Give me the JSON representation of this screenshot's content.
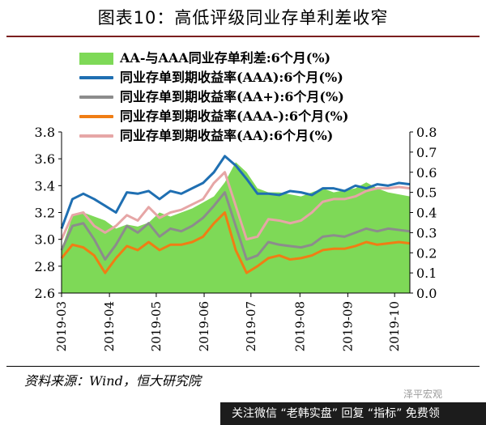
{
  "figure": {
    "title": "图表10：高低评级同业存单利差收窄",
    "source": "资料来源：Wind，恒大研究院",
    "watermark": "关注微信 “老韩实盘” 回复 “指标” 免费领",
    "corner_tag": "泽平宏观"
  },
  "colors": {
    "spread_fill": "#7ed957",
    "aaa": "#1f6fb2",
    "aa_plus": "#8c8c8c",
    "aaa_minus": "#f07d14",
    "aa": "#e6a6a6",
    "title_rule": "#7a1f1f"
  },
  "legend": [
    {
      "label": "AA-与AAA同业存单利差:6个月(%)",
      "swatch": "area",
      "color_key": "spread_fill"
    },
    {
      "label": "同业存单到期收益率(AAA):6个月(%)",
      "swatch": "line",
      "color_key": "aaa"
    },
    {
      "label": "同业存单到期收益率(AA+):6个月(%)",
      "swatch": "line",
      "color_key": "aa_plus"
    },
    {
      "label": "同业存单到期收益率(AAA-):6个月(%)",
      "swatch": "line",
      "color_key": "aaa_minus"
    },
    {
      "label": "同业存单到期收益率(AA):6个月(%)",
      "swatch": "line",
      "color_key": "aa"
    }
  ],
  "chart_data": {
    "type": "line",
    "x": [
      "2019-03-01",
      "2019-03-08",
      "2019-03-15",
      "2019-03-22",
      "2019-03-29",
      "2019-04-05",
      "2019-04-12",
      "2019-04-19",
      "2019-04-26",
      "2019-05-03",
      "2019-05-10",
      "2019-05-17",
      "2019-05-24",
      "2019-05-31",
      "2019-06-07",
      "2019-06-14",
      "2019-06-21",
      "2019-06-28",
      "2019-07-05",
      "2019-07-12",
      "2019-07-19",
      "2019-07-26",
      "2019-08-02",
      "2019-08-09",
      "2019-08-16",
      "2019-08-23",
      "2019-08-30",
      "2019-09-06",
      "2019-09-13",
      "2019-09-20",
      "2019-09-27",
      "2019-10-04",
      "2019-10-11"
    ],
    "x_ticks": [
      "2019-03",
      "2019-04",
      "2019-05",
      "2019-06",
      "2019-07",
      "2019-08",
      "2019-09",
      "2019-10"
    ],
    "y_left": {
      "min": 2.6,
      "max": 3.8,
      "ticks": [
        "2.6",
        "2.8",
        "3.0",
        "3.2",
        "3.4",
        "3.6",
        "3.8"
      ]
    },
    "y_right": {
      "min": 0.0,
      "max": 0.8,
      "ticks": [
        "0.0",
        "0.1",
        "0.2",
        "0.3",
        "0.4",
        "0.5",
        "0.6",
        "0.7",
        "0.8"
      ]
    },
    "area_series": {
      "name": "AA-与AAA同业存单利差:6个月(%)",
      "axis": "right",
      "values": [
        0.22,
        0.38,
        0.4,
        0.38,
        0.36,
        0.32,
        0.34,
        0.33,
        0.35,
        0.4,
        0.38,
        0.4,
        0.42,
        0.45,
        0.48,
        0.55,
        0.65,
        0.6,
        0.52,
        0.5,
        0.5,
        0.49,
        0.48,
        0.5,
        0.52,
        0.5,
        0.51,
        0.52,
        0.55,
        0.52,
        0.5,
        0.49,
        0.48
      ]
    },
    "series": [
      {
        "name": "同业存单到期收益率(AAA):6个月(%)",
        "axis": "left",
        "color_key": "aaa",
        "values": [
          3.08,
          3.3,
          3.34,
          3.3,
          3.25,
          3.2,
          3.35,
          3.34,
          3.36,
          3.3,
          3.36,
          3.34,
          3.38,
          3.42,
          3.5,
          3.62,
          3.55,
          3.45,
          3.34,
          3.34,
          3.33,
          3.36,
          3.35,
          3.33,
          3.38,
          3.38,
          3.36,
          3.4,
          3.38,
          3.41,
          3.4,
          3.42,
          3.41
        ]
      },
      {
        "name": "同业存单到期收益率(AA+):6个月(%)",
        "axis": "left",
        "color_key": "aa_plus",
        "values": [
          2.92,
          3.1,
          3.12,
          3.0,
          2.85,
          2.96,
          3.1,
          3.05,
          3.12,
          3.02,
          3.08,
          3.06,
          3.1,
          3.16,
          3.25,
          3.35,
          3.1,
          2.85,
          2.88,
          2.98,
          2.96,
          2.95,
          2.94,
          2.96,
          3.02,
          3.03,
          3.02,
          3.05,
          3.08,
          3.06,
          3.08,
          3.07,
          3.06
        ]
      },
      {
        "name": "同业存单到期收益率(AAA-):6个月(%)",
        "axis": "left",
        "color_key": "aaa_minus",
        "values": [
          2.86,
          2.96,
          2.94,
          2.88,
          2.75,
          2.86,
          2.95,
          2.92,
          2.98,
          2.92,
          2.96,
          2.96,
          2.98,
          3.02,
          3.12,
          3.2,
          2.92,
          2.75,
          2.8,
          2.86,
          2.88,
          2.85,
          2.86,
          2.88,
          2.92,
          2.93,
          2.93,
          2.95,
          2.98,
          2.96,
          2.97,
          2.98,
          2.97
        ]
      },
      {
        "name": "同业存单到期收益率(AA):6个月(%)",
        "axis": "left",
        "color_key": "aa",
        "values": [
          3.0,
          3.18,
          3.2,
          3.1,
          3.05,
          3.1,
          3.18,
          3.14,
          3.24,
          3.16,
          3.2,
          3.22,
          3.26,
          3.3,
          3.42,
          3.5,
          3.25,
          3.0,
          3.02,
          3.15,
          3.14,
          3.12,
          3.14,
          3.2,
          3.28,
          3.3,
          3.3,
          3.32,
          3.36,
          3.38,
          3.38,
          3.39,
          3.38
        ]
      }
    ]
  }
}
